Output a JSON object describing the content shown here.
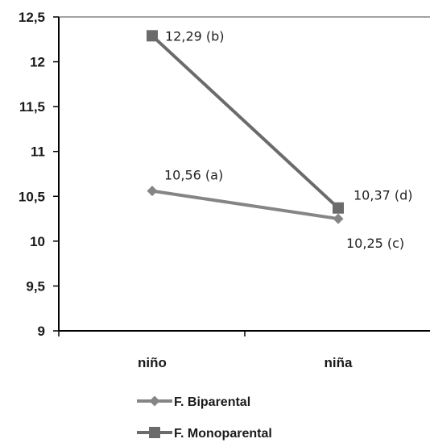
{
  "chart_data": {
    "type": "line",
    "categories": [
      "niño",
      "niña"
    ],
    "series": [
      {
        "name": "F. Biparental",
        "values": [
          10.56,
          10.25
        ],
        "labels": [
          "10,56 (a)",
          "10,25 (c)"
        ],
        "marker": "diamond",
        "color": "#858585"
      },
      {
        "name": "F. Monoparental",
        "values": [
          12.29,
          10.37
        ],
        "labels": [
          "12,29 (b)",
          "10,37 (d)"
        ],
        "marker": "square",
        "color": "#6b6b6b"
      }
    ],
    "y_ticks": [
      "9",
      "9,5",
      "10",
      "10,5",
      "11",
      "11,5",
      "12",
      "12,5"
    ],
    "ylim": [
      9,
      12.5
    ],
    "grid": false,
    "legend_position": "bottom",
    "title": "",
    "xlabel": "",
    "ylabel": ""
  }
}
